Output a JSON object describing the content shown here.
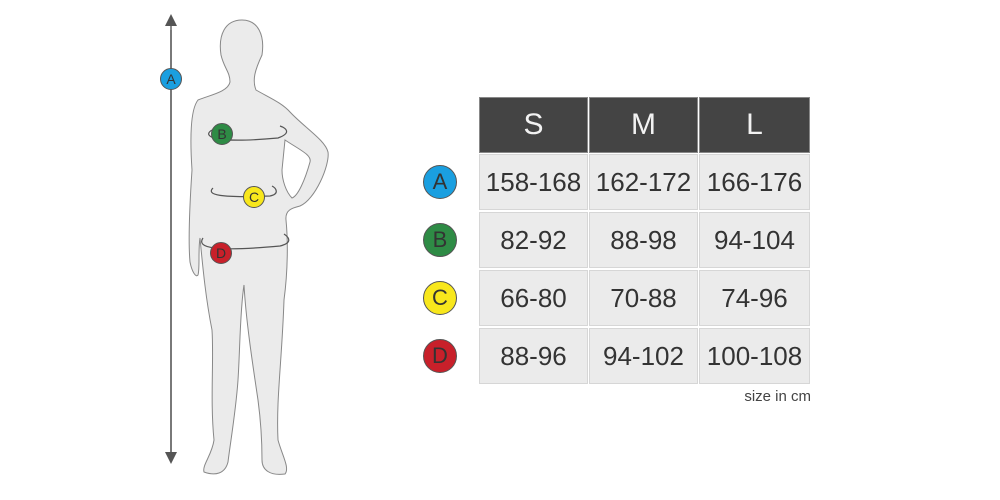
{
  "colors": {
    "A": "#1a9fe0",
    "B": "#2e8b45",
    "C": "#f8e71c",
    "D": "#c8202a",
    "header_bg": "#444444",
    "cell_bg": "#ebebeb"
  },
  "figure_markers": [
    "A",
    "B",
    "C",
    "D"
  ],
  "table": {
    "sizes": [
      "S",
      "M",
      "L"
    ],
    "rows": [
      {
        "label": "A",
        "values": [
          "158-168",
          "162-172",
          "166-176"
        ]
      },
      {
        "label": "B",
        "values": [
          "82-92",
          "88-98",
          "94-104"
        ]
      },
      {
        "label": "C",
        "values": [
          "66-80",
          "70-88",
          "74-96"
        ]
      },
      {
        "label": "D",
        "values": [
          "88-96",
          "94-102",
          "100-108"
        ]
      }
    ],
    "unit": "size in cm"
  }
}
